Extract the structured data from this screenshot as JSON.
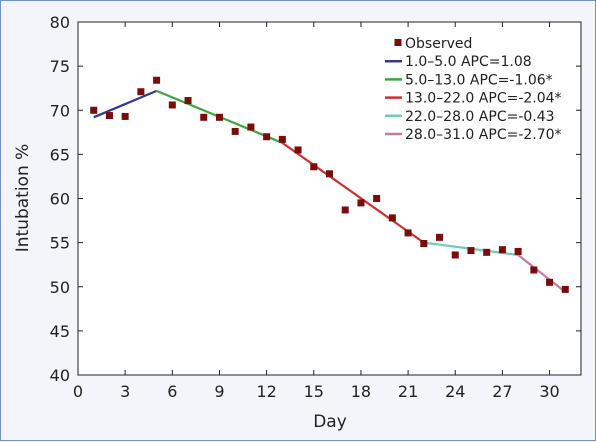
{
  "chart_data": {
    "type": "line",
    "xlabel": "Day",
    "ylabel": "Intubation %",
    "xlim": [
      0,
      32
    ],
    "ylim": [
      40,
      80
    ],
    "xticks": [
      0,
      3,
      6,
      9,
      12,
      15,
      18,
      21,
      24,
      27,
      30
    ],
    "yticks": [
      40,
      45,
      50,
      55,
      60,
      65,
      70,
      75,
      80
    ],
    "grid": false,
    "legend_position": "top-right",
    "observed": {
      "name": "Observed",
      "color": "#7a0c0c",
      "x": [
        1,
        2,
        3,
        4,
        5,
        6,
        7,
        8,
        9,
        10,
        11,
        12,
        13,
        14,
        15,
        16,
        17,
        18,
        19,
        20,
        21,
        22,
        23,
        24,
        25,
        26,
        27,
        28,
        29,
        30,
        31
      ],
      "y": [
        70.0,
        69.4,
        69.3,
        72.1,
        73.4,
        70.6,
        71.1,
        69.2,
        69.2,
        67.6,
        68.1,
        67.0,
        66.7,
        65.5,
        63.6,
        62.8,
        58.7,
        59.5,
        60.0,
        57.8,
        56.1,
        54.9,
        55.6,
        53.6,
        54.1,
        53.9,
        54.2,
        54.0,
        51.9,
        50.5,
        49.7
      ]
    },
    "segments": [
      {
        "name": "1.0–5.0 APC=1.08",
        "color": "#323c8c",
        "x": [
          1,
          5
        ],
        "y": [
          69.2,
          72.2
        ]
      },
      {
        "name": "5.0–13.0 APC=-1.06*",
        "color": "#3aa83a",
        "x": [
          5,
          13
        ],
        "y": [
          72.2,
          66.3
        ]
      },
      {
        "name": "13.0–22.0 APC=-2.04*",
        "color": "#cf2f2f",
        "x": [
          13,
          22
        ],
        "y": [
          66.3,
          55.0
        ]
      },
      {
        "name": "22.0–28.0 APC=-0.43",
        "color": "#6ccdbb",
        "x": [
          22,
          28
        ],
        "y": [
          55.0,
          53.6
        ]
      },
      {
        "name": "28.0–31.0 APC=-2.70*",
        "color": "#c97a9f",
        "x": [
          28,
          31
        ],
        "y": [
          53.6,
          49.4
        ]
      }
    ]
  }
}
